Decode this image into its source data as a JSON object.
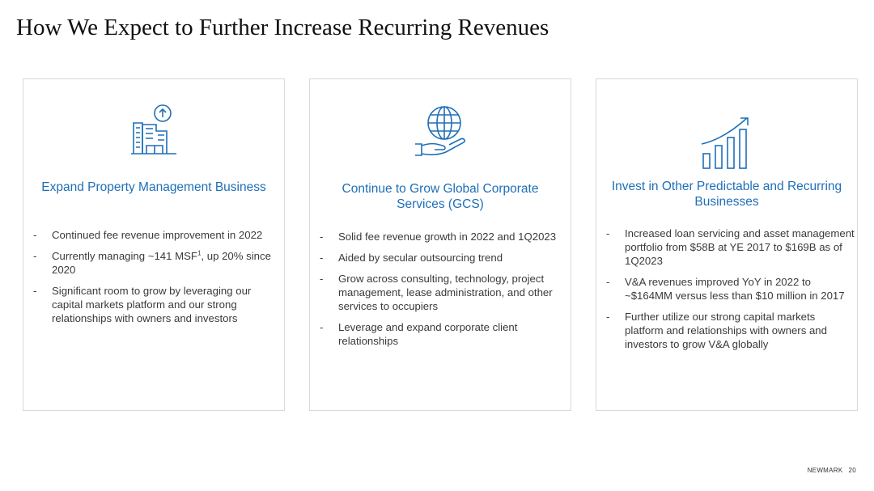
{
  "slide": {
    "title": "How We Expect to Further Increase Recurring Revenues"
  },
  "colors": {
    "accent": "#1f6fb8",
    "body_text": "#3a3a3a",
    "border": "#d9d9d9"
  },
  "cards": [
    {
      "icon": "building-up-arrow-icon",
      "heading": "Expand Property Management Business",
      "bullets": [
        "Continued fee revenue improvement in 2022",
        "Currently managing ~141 MSF",
        "Significant room to grow by leveraging our capital markets platform and our strong relationships with owners and investors"
      ],
      "bullet2_sup": "1",
      "bullet2_tail": ", up 20% since 2020"
    },
    {
      "icon": "globe-hand-icon",
      "heading": "Continue to Grow Global Corporate Services (GCS)",
      "bullets": [
        "Solid fee revenue growth in 2022 and 1Q2023",
        "Aided by secular outsourcing trend",
        "Grow across consulting, technology, project management, lease administration, and other services to occupiers",
        "Leverage and expand corporate client relationships"
      ]
    },
    {
      "icon": "growth-bar-chart-icon",
      "heading": "Invest in Other Predictable and Recurring Businesses",
      "bullets": [
        "Increased loan servicing and asset management portfolio from $58B at YE 2017 to $169B as of 1Q2023",
        "V&A revenues improved YoY in 2022 to ~$164MM versus less than $10 million in 2017",
        "Further utilize our strong capital markets platform and relationships with owners and investors to grow V&A globally"
      ]
    }
  ],
  "bullet_marker": "-",
  "footer": {
    "brand": "NEWMARK",
    "page_number": "20"
  }
}
